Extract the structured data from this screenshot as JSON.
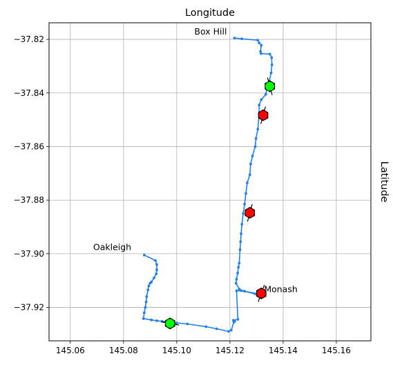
{
  "chart_data": {
    "type": "line",
    "title": "Longitude",
    "xlabel": "",
    "ylabel": "Latitude",
    "xlim": [
      145.052,
      145.173
    ],
    "ylim": [
      -37.9325,
      -37.8138
    ],
    "grid": true,
    "x_ticks": [
      "145.06",
      "145.08",
      "145.10",
      "145.12",
      "145.14",
      "145.16"
    ],
    "x_tick_values": [
      145.06,
      145.08,
      145.1,
      145.12,
      145.14,
      145.16
    ],
    "y_ticks": [
      "−37.82",
      "−37.84",
      "−37.86",
      "−37.88",
      "−37.90",
      "−37.92"
    ],
    "y_tick_values": [
      -37.82,
      -37.84,
      -37.86,
      -37.88,
      -37.9,
      -37.92
    ],
    "colors": {
      "route": "#1f7fe6",
      "marker_green": "#00ff00",
      "marker_red": "#ff0000",
      "marker_edge": "#000000",
      "grid": "#b0b0b0"
    },
    "series": [
      {
        "x": [
          145.1217,
          145.1245,
          145.1305,
          145.131,
          145.1318,
          145.1315,
          145.1317,
          145.135,
          145.1357,
          145.1358,
          145.1355,
          145.1348,
          145.134,
          145.1335,
          145.1318,
          145.131,
          145.131,
          145.1305,
          145.1298,
          145.1295,
          145.1285,
          145.1278,
          145.1275,
          145.1265,
          145.126,
          145.1255,
          145.125,
          145.1245,
          145.1242,
          145.124,
          145.1238,
          145.1235,
          145.1232,
          145.1229,
          145.1225,
          145.1223,
          145.1235,
          145.1255,
          145.1295,
          145.131,
          145.1243,
          145.1225,
          145.123,
          145.1213,
          145.1218,
          145.1215,
          145.1205,
          145.1195,
          145.115,
          145.111,
          145.104,
          145.1,
          145.0975,
          145.0945,
          145.0925,
          145.0905,
          145.0875,
          145.0878,
          145.0882,
          145.0885,
          145.0887,
          145.0892,
          145.0895,
          145.09,
          145.0905,
          145.0915,
          145.0923,
          145.0925,
          145.0925,
          145.092,
          145.0878
        ],
        "y": [
          -37.8195,
          -37.8198,
          -37.8203,
          -37.8213,
          -37.8222,
          -37.8245,
          -37.8253,
          -37.8255,
          -37.8268,
          -37.8295,
          -37.8325,
          -37.8355,
          -37.8375,
          -37.8405,
          -37.8425,
          -37.8445,
          -37.848,
          -37.8535,
          -37.857,
          -37.86,
          -37.8635,
          -37.8665,
          -37.8705,
          -37.8735,
          -37.8775,
          -37.8815,
          -37.885,
          -37.889,
          -37.8925,
          -37.8955,
          -37.8985,
          -37.9035,
          -37.905,
          -37.9072,
          -37.9095,
          -37.911,
          -37.9132,
          -37.914,
          -37.915,
          -37.915,
          -37.9138,
          -37.9138,
          -37.9245,
          -37.9248,
          -37.9252,
          -37.9255,
          -37.9285,
          -37.929,
          -37.928,
          -37.9272,
          -37.9262,
          -37.9258,
          -37.9255,
          -37.9252,
          -37.925,
          -37.9247,
          -37.9242,
          -37.922,
          -37.92,
          -37.918,
          -37.916,
          -37.9135,
          -37.912,
          -37.911,
          -37.9105,
          -37.909,
          -37.9075,
          -37.906,
          -37.904,
          -37.9025,
          -37.9005
        ]
      }
    ],
    "annotations": [
      "Box Hill",
      "Oakleigh",
      "Monash"
    ],
    "annotation_anchors": [
      {
        "x": 145.1217,
        "y": -37.8195
      },
      {
        "x": 145.0878,
        "y": -37.9005
      },
      {
        "x": 145.1318,
        "y": -37.9148
      }
    ],
    "markers": [
      {
        "x": 145.135,
        "y": -37.8375,
        "color": "green",
        "heading_deg": 345
      },
      {
        "x": 145.1325,
        "y": -37.8483,
        "color": "red",
        "heading_deg": 195
      },
      {
        "x": 145.1275,
        "y": -37.8847,
        "color": "red",
        "heading_deg": 195
      },
      {
        "x": 145.1318,
        "y": -37.9148,
        "color": "red",
        "heading_deg": 20
      },
      {
        "x": 145.0975,
        "y": -37.926,
        "color": "green",
        "heading_deg": 100
      }
    ]
  }
}
